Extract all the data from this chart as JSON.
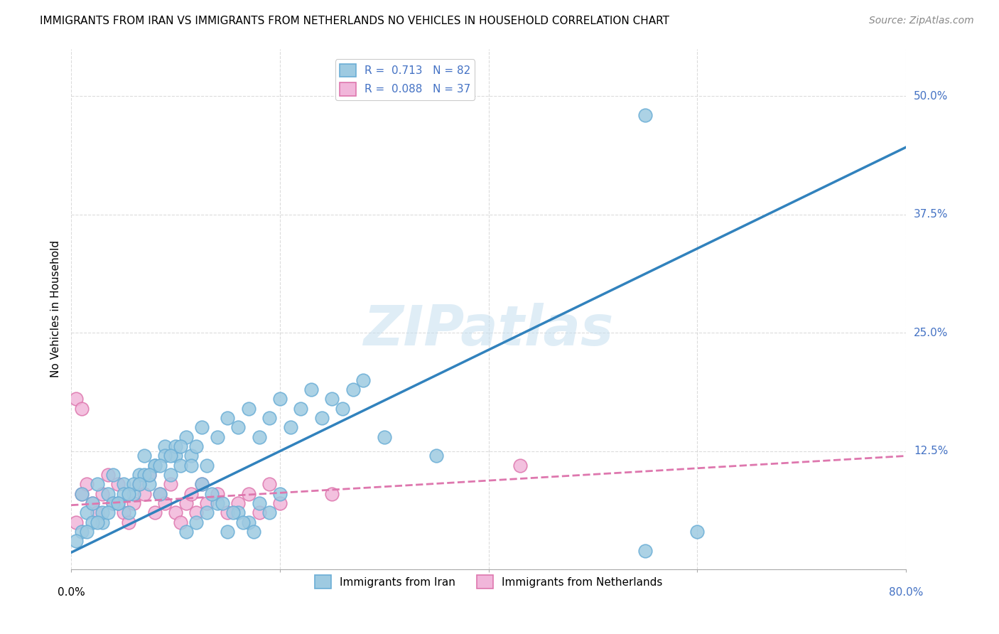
{
  "title": "IMMIGRANTS FROM IRAN VS IMMIGRANTS FROM NETHERLANDS NO VEHICLES IN HOUSEHOLD CORRELATION CHART",
  "source": "Source: ZipAtlas.com",
  "ylabel": "No Vehicles in Household",
  "xlim": [
    0.0,
    0.8
  ],
  "ylim": [
    0.0,
    0.55
  ],
  "xticks": [
    0.0,
    0.2,
    0.4,
    0.6,
    0.8
  ],
  "yticks": [
    0.0,
    0.125,
    0.25,
    0.375,
    0.5
  ],
  "yticklabels": [
    "",
    "12.5%",
    "25.0%",
    "37.5%",
    "50.0%"
  ],
  "iran_color": "#6baed6",
  "iran_color_fill": "#9ecae1",
  "netherlands_color": "#de77ae",
  "netherlands_color_fill": "#f1b6da",
  "iran_R": 0.713,
  "iran_N": 82,
  "netherlands_R": 0.088,
  "netherlands_N": 37,
  "legend_label_iran": "Immigrants from Iran",
  "legend_label_netherlands": "Immigrants from Netherlands",
  "watermark": "ZIPatlas",
  "background_color": "#ffffff",
  "grid_color": "#cccccc",
  "iran_scatter_x": [
    0.01,
    0.015,
    0.02,
    0.025,
    0.03,
    0.035,
    0.04,
    0.045,
    0.05,
    0.055,
    0.06,
    0.065,
    0.07,
    0.075,
    0.08,
    0.085,
    0.09,
    0.095,
    0.1,
    0.105,
    0.11,
    0.115,
    0.12,
    0.125,
    0.13,
    0.14,
    0.15,
    0.16,
    0.17,
    0.18,
    0.19,
    0.2,
    0.21,
    0.22,
    0.23,
    0.24,
    0.25,
    0.26,
    0.27,
    0.28,
    0.01,
    0.02,
    0.03,
    0.04,
    0.05,
    0.06,
    0.07,
    0.08,
    0.09,
    0.1,
    0.11,
    0.12,
    0.13,
    0.14,
    0.15,
    0.16,
    0.17,
    0.18,
    0.19,
    0.2,
    0.005,
    0.015,
    0.025,
    0.035,
    0.045,
    0.055,
    0.065,
    0.075,
    0.085,
    0.095,
    0.105,
    0.115,
    0.125,
    0.135,
    0.145,
    0.155,
    0.165,
    0.175,
    0.3,
    0.35,
    0.55,
    0.6
  ],
  "iran_scatter_y": [
    0.08,
    0.06,
    0.07,
    0.09,
    0.05,
    0.08,
    0.1,
    0.07,
    0.09,
    0.06,
    0.08,
    0.1,
    0.12,
    0.09,
    0.11,
    0.08,
    0.13,
    0.1,
    0.12,
    0.11,
    0.14,
    0.12,
    0.13,
    0.15,
    0.11,
    0.14,
    0.16,
    0.15,
    0.17,
    0.14,
    0.16,
    0.18,
    0.15,
    0.17,
    0.19,
    0.16,
    0.18,
    0.17,
    0.19,
    0.2,
    0.04,
    0.05,
    0.06,
    0.07,
    0.08,
    0.09,
    0.1,
    0.11,
    0.12,
    0.13,
    0.04,
    0.05,
    0.06,
    0.07,
    0.04,
    0.06,
    0.05,
    0.07,
    0.06,
    0.08,
    0.03,
    0.04,
    0.05,
    0.06,
    0.07,
    0.08,
    0.09,
    0.1,
    0.11,
    0.12,
    0.13,
    0.11,
    0.09,
    0.08,
    0.07,
    0.06,
    0.05,
    0.04,
    0.14,
    0.12,
    0.02,
    0.04
  ],
  "iran_outlier_x": [
    0.55
  ],
  "iran_outlier_y": [
    0.48
  ],
  "netherlands_scatter_x": [
    0.005,
    0.01,
    0.015,
    0.02,
    0.025,
    0.03,
    0.035,
    0.04,
    0.045,
    0.05,
    0.055,
    0.06,
    0.065,
    0.07,
    0.075,
    0.08,
    0.085,
    0.09,
    0.095,
    0.1,
    0.105,
    0.11,
    0.115,
    0.12,
    0.125,
    0.13,
    0.14,
    0.15,
    0.16,
    0.17,
    0.18,
    0.19,
    0.2,
    0.25,
    0.43,
    0.005,
    0.01
  ],
  "netherlands_scatter_y": [
    0.05,
    0.08,
    0.09,
    0.07,
    0.06,
    0.08,
    0.1,
    0.07,
    0.09,
    0.06,
    0.05,
    0.07,
    0.09,
    0.08,
    0.1,
    0.06,
    0.08,
    0.07,
    0.09,
    0.06,
    0.05,
    0.07,
    0.08,
    0.06,
    0.09,
    0.07,
    0.08,
    0.06,
    0.07,
    0.08,
    0.06,
    0.09,
    0.07,
    0.08,
    0.11,
    0.18,
    0.17
  ],
  "iran_line_x": [
    0.0,
    0.8
  ],
  "iran_line_y_intercept": 0.018,
  "iran_line_slope": 0.535,
  "netherlands_line_x": [
    0.0,
    0.8
  ],
  "netherlands_line_y_intercept": 0.068,
  "netherlands_line_slope": 0.065
}
